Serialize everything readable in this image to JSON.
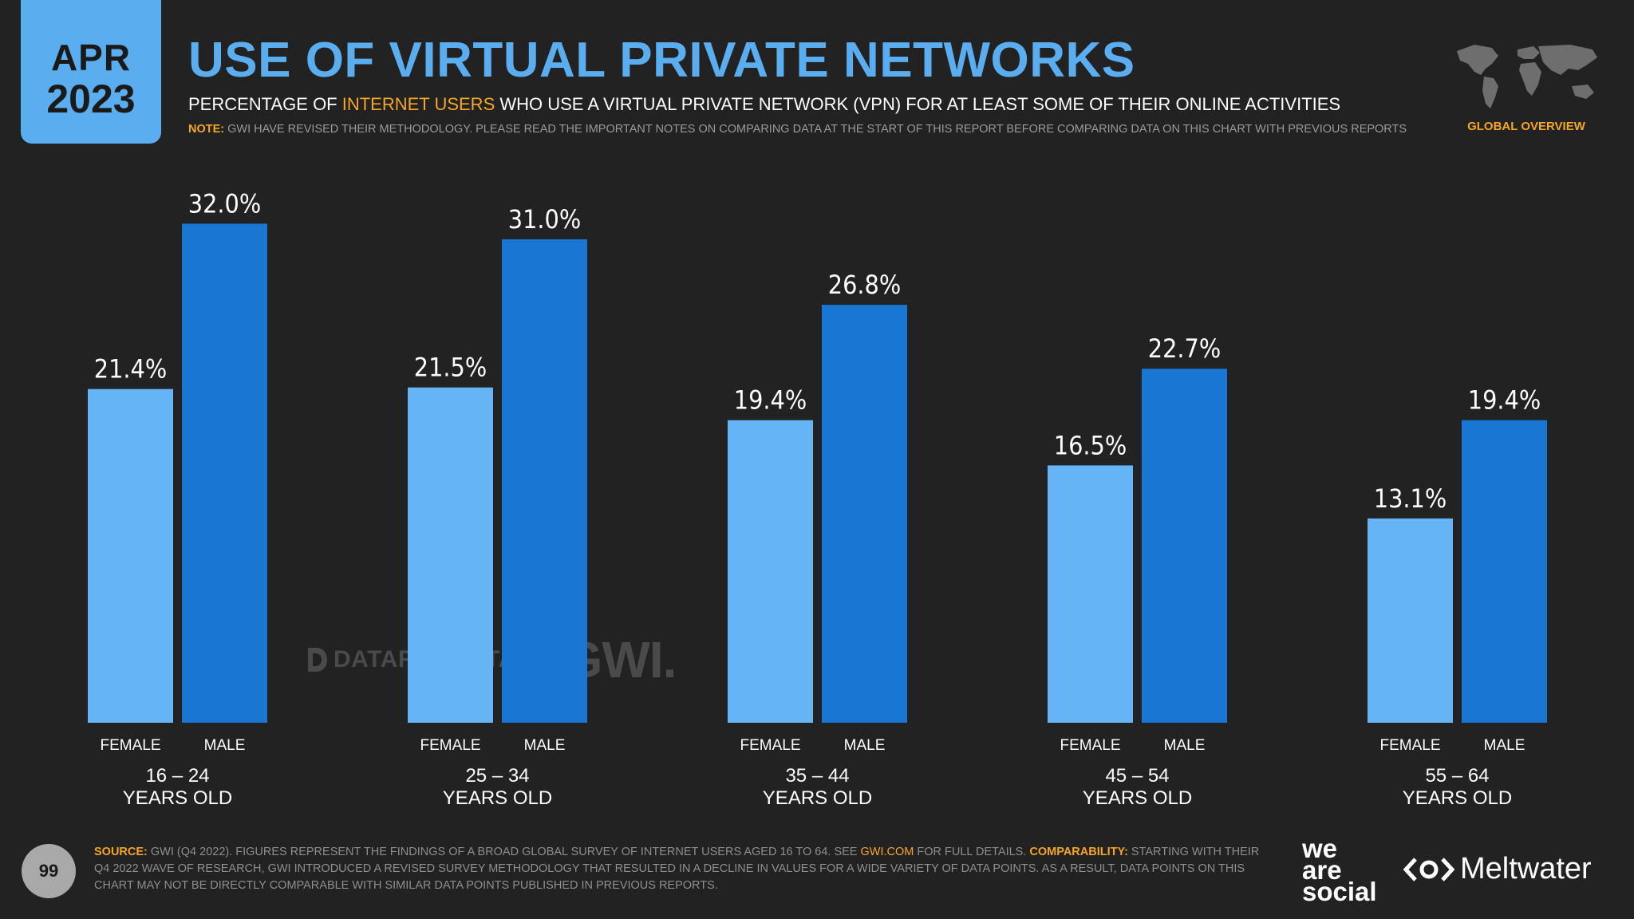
{
  "header": {
    "date_month": "APR",
    "date_year": "2023",
    "title": "USE OF VIRTUAL PRIVATE NETWORKS",
    "subtitle_before": "PERCENTAGE OF ",
    "subtitle_highlight": "INTERNET USERS",
    "subtitle_after": " WHO USE A VIRTUAL PRIVATE NETWORK (VPN) FOR AT LEAST SOME OF THEIR ONLINE ACTIVITIES",
    "note_label": "NOTE:",
    "note_text": " GWI HAVE REVISED THEIR METHODOLOGY. PLEASE READ THE IMPORTANT NOTES ON COMPARING DATA AT THE START OF THIS REPORT BEFORE COMPARING DATA ON THIS CHART WITH PREVIOUS REPORTS",
    "region_label": "GLOBAL OVERVIEW"
  },
  "colors": {
    "background": "#222223",
    "accent_blue": "#5aaef0",
    "female_bar": "#64b4f6",
    "male_bar": "#1976d2",
    "highlight_orange": "#f5a623"
  },
  "watermark": {
    "datareportal": "DATAREPORTAL",
    "gwi": "GWI."
  },
  "chart_data": {
    "type": "bar",
    "title": "USE OF VIRTUAL PRIVATE NETWORKS",
    "unit": "%",
    "ylim": [
      0,
      35
    ],
    "grid": false,
    "legend": "none",
    "categories": [
      {
        "range": "16 – 24",
        "sub": "YEARS OLD"
      },
      {
        "range": "25 – 34",
        "sub": "YEARS OLD"
      },
      {
        "range": "35 – 44",
        "sub": "YEARS OLD"
      },
      {
        "range": "45 – 54",
        "sub": "YEARS OLD"
      },
      {
        "range": "55 – 64",
        "sub": "YEARS OLD"
      }
    ],
    "series": [
      {
        "name": "FEMALE",
        "values": [
          21.4,
          21.5,
          19.4,
          16.5,
          13.1
        ],
        "labels": [
          "21.4%",
          "21.5%",
          "19.4%",
          "16.5%",
          "13.1%"
        ]
      },
      {
        "name": "MALE",
        "values": [
          32.0,
          31.0,
          26.8,
          22.7,
          19.4
        ],
        "labels": [
          "32.0%",
          "31.0%",
          "26.8%",
          "22.7%",
          "19.4%"
        ]
      }
    ]
  },
  "footer": {
    "page_number": "99",
    "source_label": "SOURCE:",
    "source_text_1": " GWI (Q4 2022). FIGURES REPRESENT THE FINDINGS OF A BROAD GLOBAL SURVEY OF INTERNET USERS AGED 16 TO 64. SEE ",
    "source_link": "GWI.COM",
    "source_text_2": " FOR FULL DETAILS. ",
    "comparability_label": "COMPARABILITY:",
    "comparability_text": " STARTING WITH THEIR Q4 2022 WAVE OF RESEARCH, GWI INTRODUCED A REVISED SURVEY METHODOLOGY THAT RESULTED IN A DECLINE IN VALUES FOR A WIDE VARIETY OF DATA POINTS. AS A RESULT, DATA POINTS ON THIS CHART MAY NOT BE DIRECTLY COMPARABLE WITH SIMILAR DATA POINTS PUBLISHED IN PREVIOUS REPORTS.",
    "brand_we": "we",
    "brand_are": "are",
    "brand_social": "social",
    "brand_meltwater": "Meltwater"
  }
}
